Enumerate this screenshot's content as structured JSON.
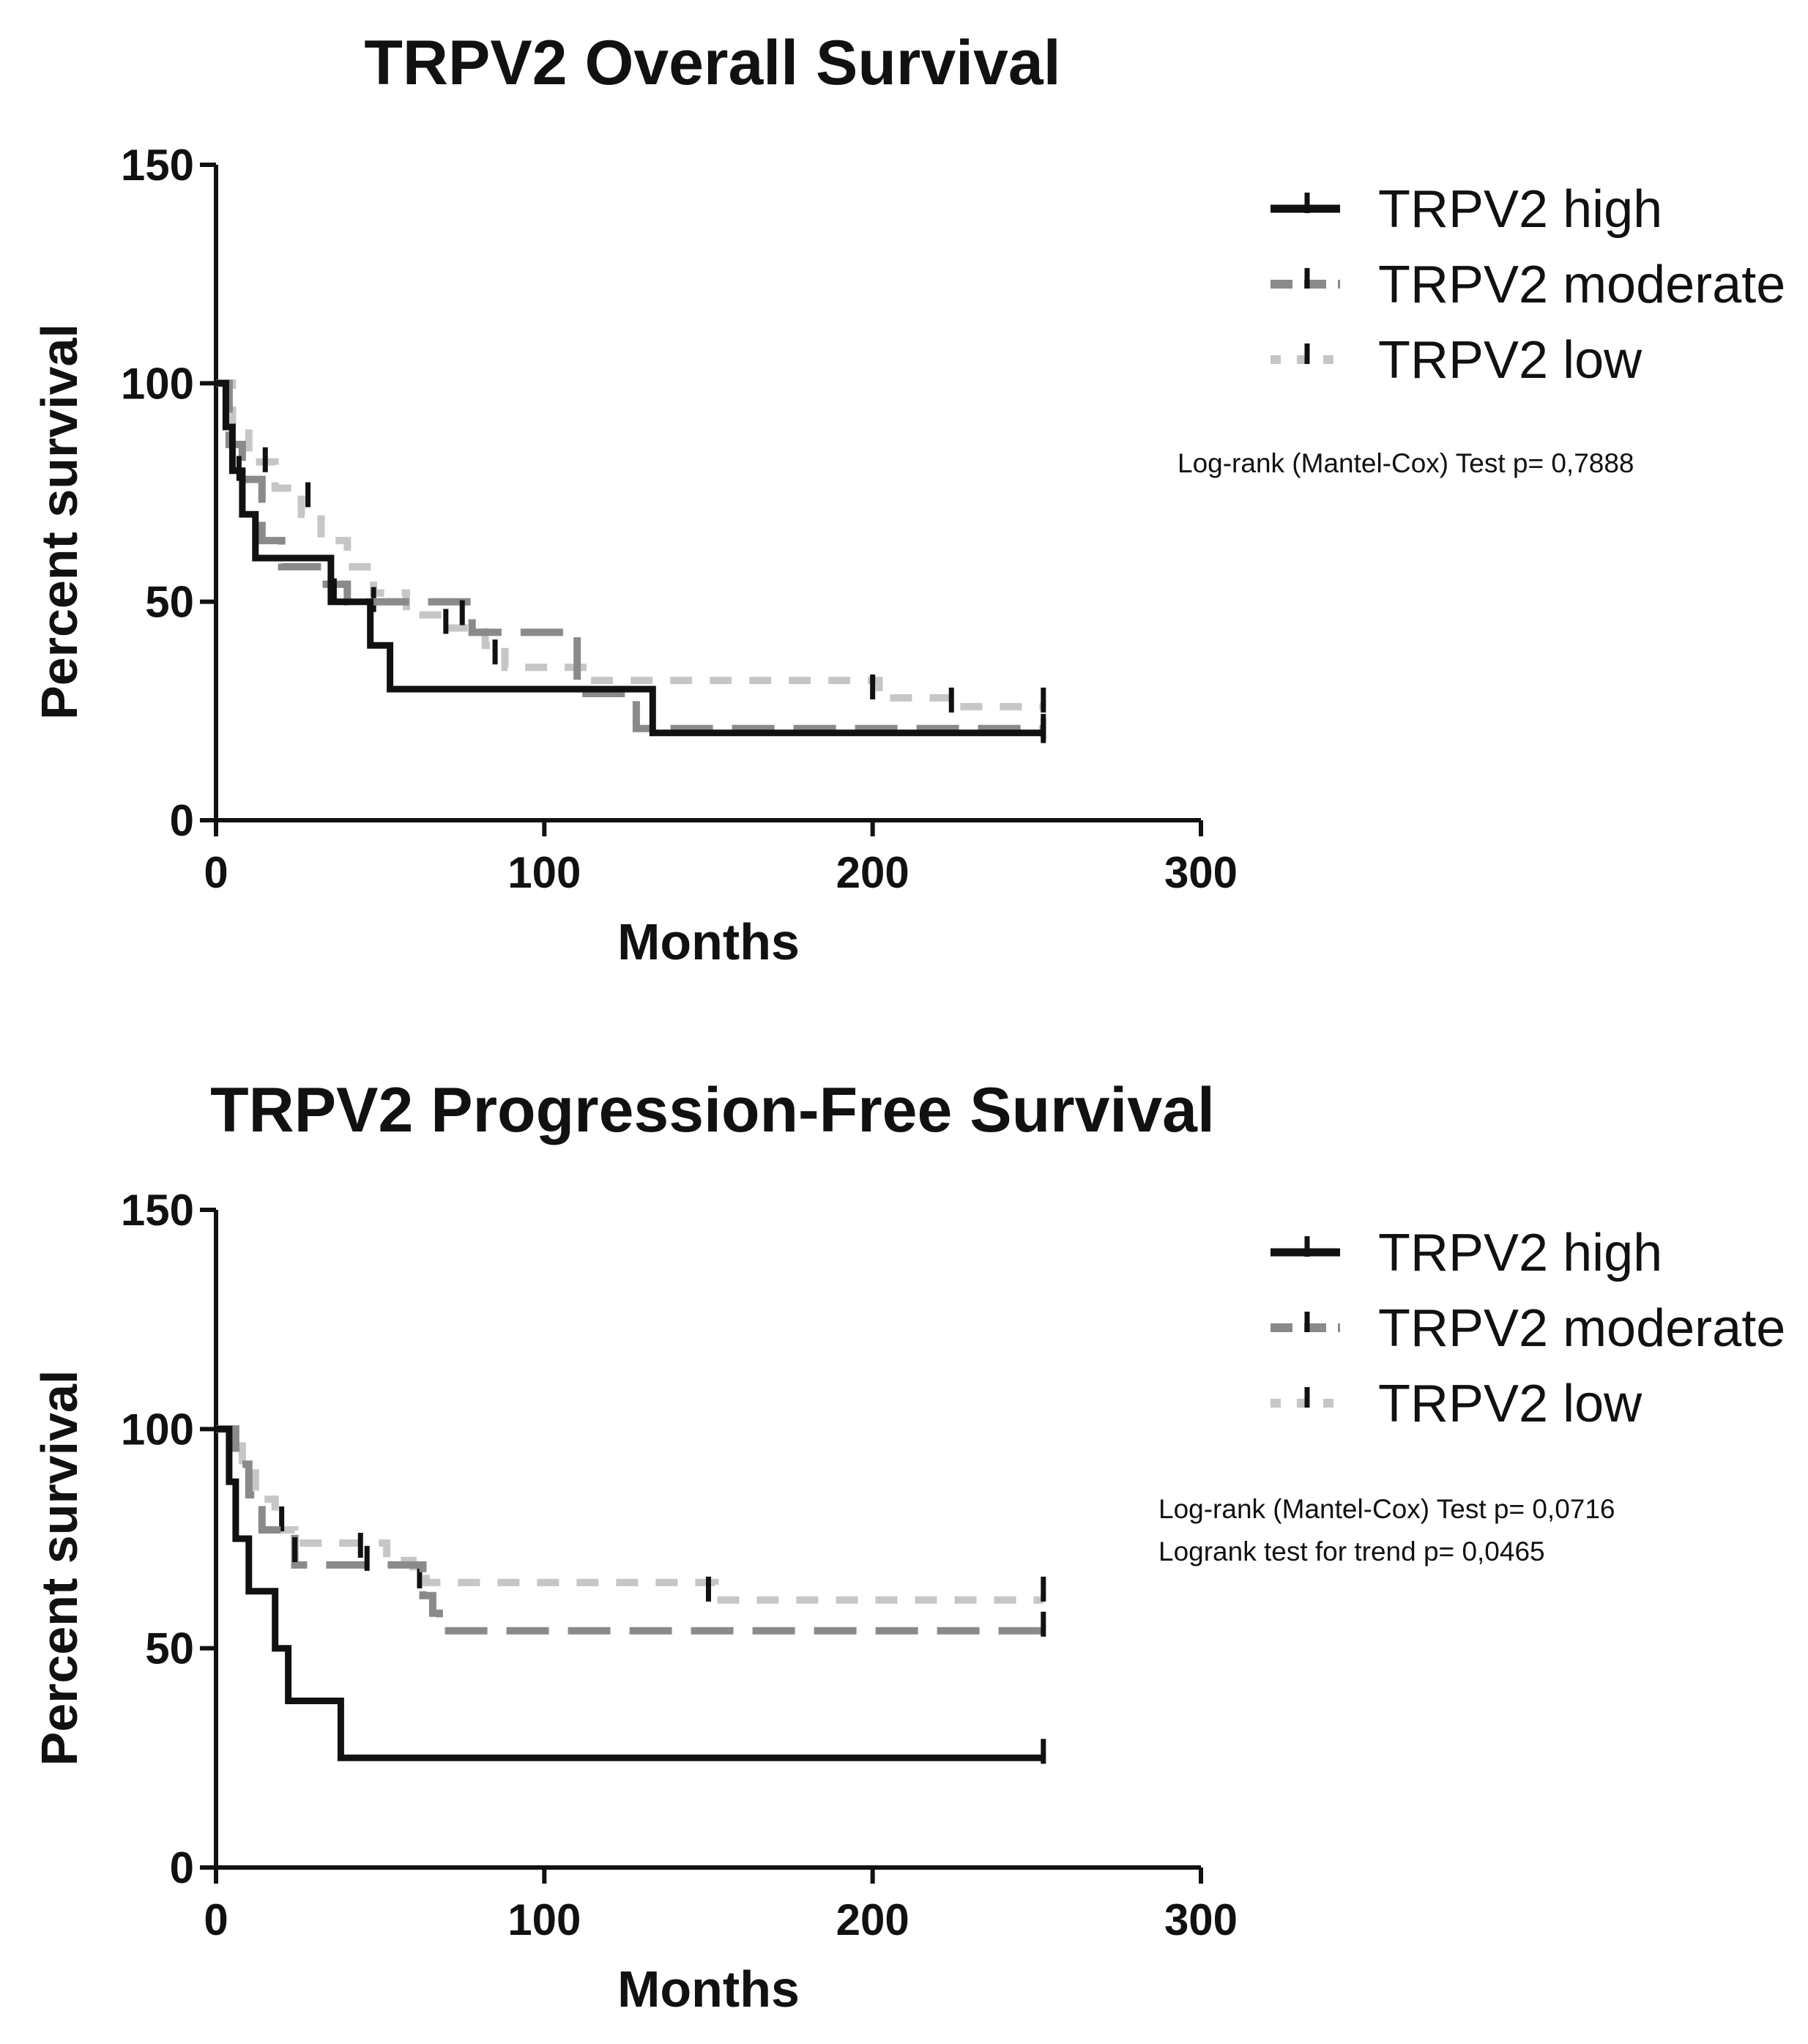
{
  "chart_data": [
    {
      "type": "line",
      "subtype": "kaplan-meier",
      "title": "TRPV2 Overall Survival",
      "xlabel": "Months",
      "ylabel": "Percent survival",
      "xlim": [
        0,
        300
      ],
      "ylim": [
        0,
        150
      ],
      "xticks": [
        0,
        100,
        200,
        300
      ],
      "yticks": [
        0,
        50,
        100,
        150
      ],
      "legend_position": "right",
      "stat_lines": [
        "Log-rank (Mantel-Cox) Test p= 0,7888"
      ],
      "series": [
        {
          "name": "TRPV2 high",
          "color": "#111111",
          "dash": "solid",
          "steps": [
            [
              0,
              100
            ],
            [
              3,
              90
            ],
            [
              5,
              80
            ],
            [
              8,
              70
            ],
            [
              12,
              60
            ],
            [
              30,
              60
            ],
            [
              35,
              50
            ],
            [
              45,
              50
            ],
            [
              47,
              40
            ],
            [
              53,
              40
            ],
            [
              53,
              30
            ],
            [
              133,
              30
            ],
            [
              133,
              20
            ],
            [
              252,
              20
            ]
          ],
          "censored": [
            [
              7,
              80
            ],
            [
              252,
              20
            ]
          ]
        },
        {
          "name": "TRPV2 moderate",
          "color": "#8a8a8a",
          "dash": "long",
          "steps": [
            [
              0,
              100
            ],
            [
              4,
              86
            ],
            [
              8,
              78
            ],
            [
              14,
              64
            ],
            [
              20,
              58
            ],
            [
              28,
              58
            ],
            [
              32,
              54
            ],
            [
              40,
              50
            ],
            [
              75,
              50
            ],
            [
              78,
              43
            ],
            [
              107,
              43
            ],
            [
              110,
              29
            ],
            [
              125,
              29
            ],
            [
              128,
              21
            ],
            [
              252,
              21
            ]
          ],
          "censored": [
            [
              36,
              52
            ],
            [
              75,
              47
            ],
            [
              252,
              21
            ]
          ]
        },
        {
          "name": "TRPV2 low",
          "color": "#c6c6c6",
          "dash": "short",
          "steps": [
            [
              0,
              100
            ],
            [
              5,
              90
            ],
            [
              10,
              82
            ],
            [
              18,
              76
            ],
            [
              26,
              70
            ],
            [
              32,
              64
            ],
            [
              40,
              58
            ],
            [
              48,
              52
            ],
            [
              58,
              47
            ],
            [
              70,
              44
            ],
            [
              82,
              40
            ],
            [
              88,
              35
            ],
            [
              110,
              35
            ],
            [
              114,
              32
            ],
            [
              200,
              32
            ],
            [
              202,
              28
            ],
            [
              224,
              28
            ],
            [
              226,
              26
            ],
            [
              252,
              26
            ]
          ],
          "censored": [
            [
              15,
              82
            ],
            [
              28,
              74
            ],
            [
              48,
              50
            ],
            [
              70,
              45
            ],
            [
              85,
              38
            ],
            [
              200,
              30
            ],
            [
              224,
              27
            ],
            [
              252,
              27
            ]
          ]
        }
      ]
    },
    {
      "type": "line",
      "subtype": "kaplan-meier",
      "title": "TRPV2 Progression-Free Survival",
      "xlabel": "Months",
      "ylabel": "Percent survival",
      "xlim": [
        0,
        300
      ],
      "ylim": [
        0,
        150
      ],
      "xticks": [
        0,
        100,
        200,
        300
      ],
      "yticks": [
        0,
        50,
        100,
        150
      ],
      "legend_position": "right",
      "stat_lines": [
        "Log-rank (Mantel-Cox) Test p= 0,0716",
        "Logrank test for trend p= 0,0465"
      ],
      "series": [
        {
          "name": "TRPV2 high",
          "color": "#111111",
          "dash": "solid",
          "steps": [
            [
              0,
              100
            ],
            [
              4,
              88
            ],
            [
              6,
              75
            ],
            [
              10,
              63
            ],
            [
              18,
              63
            ],
            [
              18,
              50
            ],
            [
              22,
              50
            ],
            [
              22,
              38
            ],
            [
              38,
              38
            ],
            [
              38,
              25
            ],
            [
              252,
              25
            ]
          ],
          "censored": [
            [
              252,
              26
            ]
          ]
        },
        {
          "name": "TRPV2 moderate",
          "color": "#8a8a8a",
          "dash": "long",
          "steps": [
            [
              0,
              100
            ],
            [
              6,
              92
            ],
            [
              10,
              85
            ],
            [
              14,
              77
            ],
            [
              22,
              77
            ],
            [
              24,
              69
            ],
            [
              60,
              69
            ],
            [
              63,
              62
            ],
            [
              66,
              58
            ],
            [
              68,
              54
            ],
            [
              252,
              54
            ]
          ],
          "censored": [
            [
              24,
              72
            ],
            [
              46,
              70
            ],
            [
              252,
              55
            ]
          ]
        },
        {
          "name": "TRPV2 low",
          "color": "#c6c6c6",
          "dash": "short",
          "steps": [
            [
              0,
              100
            ],
            [
              8,
              90
            ],
            [
              12,
              84
            ],
            [
              18,
              77
            ],
            [
              24,
              74
            ],
            [
              48,
              74
            ],
            [
              52,
              70
            ],
            [
              60,
              67
            ],
            [
              64,
              65
            ],
            [
              150,
              65
            ],
            [
              152,
              61
            ],
            [
              252,
              61
            ]
          ],
          "censored": [
            [
              20,
              79
            ],
            [
              44,
              73
            ],
            [
              62,
              66
            ],
            [
              150,
              63
            ],
            [
              252,
              63
            ]
          ]
        }
      ]
    }
  ]
}
